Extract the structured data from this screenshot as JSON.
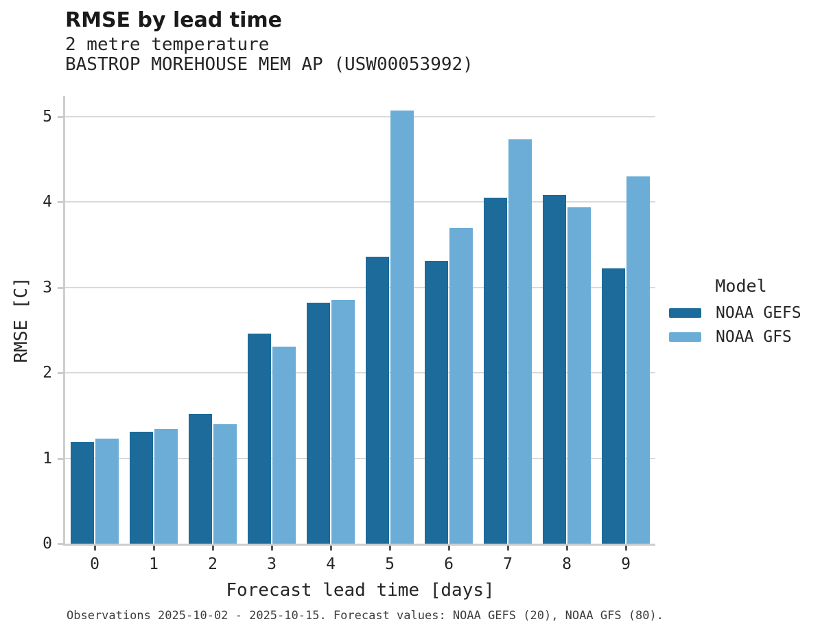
{
  "header": {
    "title": "RMSE by lead time",
    "subtitle_line1": "2 metre temperature",
    "subtitle_line2": "BASTROP MOREHOUSE MEM AP (USW00053992)"
  },
  "chart_data": {
    "type": "bar",
    "grouped": true,
    "title": "RMSE by lead time",
    "subtitle": [
      "2 metre temperature",
      "BASTROP MOREHOUSE MEM AP (USW00053992)"
    ],
    "categories": [
      "0",
      "1",
      "2",
      "3",
      "4",
      "5",
      "6",
      "7",
      "8",
      "9"
    ],
    "series": [
      {
        "name": "NOAA GEFS",
        "color": "#1c6b9a",
        "values": [
          1.19,
          1.31,
          1.52,
          2.46,
          2.82,
          3.36,
          3.31,
          4.05,
          4.08,
          3.22
        ]
      },
      {
        "name": "NOAA GFS",
        "color": "#6badd6",
        "values": [
          1.23,
          1.34,
          1.4,
          2.31,
          2.85,
          5.07,
          3.7,
          4.73,
          3.94,
          4.3
        ]
      }
    ],
    "xlabel": "Forecast lead time [days]",
    "ylabel": "RMSE [C]",
    "ylim": [
      0,
      5.24
    ],
    "y_ticks": [
      0,
      1,
      2,
      3,
      4,
      5
    ],
    "grid": "horizontal",
    "legend": {
      "title": "Model",
      "position": "right"
    }
  },
  "footer": {
    "text": "Observations 2025-10-02 - 2025-10-15. Forecast values: NOAA GEFS (20), NOAA GFS (80)."
  },
  "colors": {
    "series_dark": "#1c6b9a",
    "series_light": "#6badd6",
    "grid": "#d9d9d9",
    "spine": "#cdcdcd",
    "text": "#262626",
    "footer_text": "#3d3d3d"
  }
}
